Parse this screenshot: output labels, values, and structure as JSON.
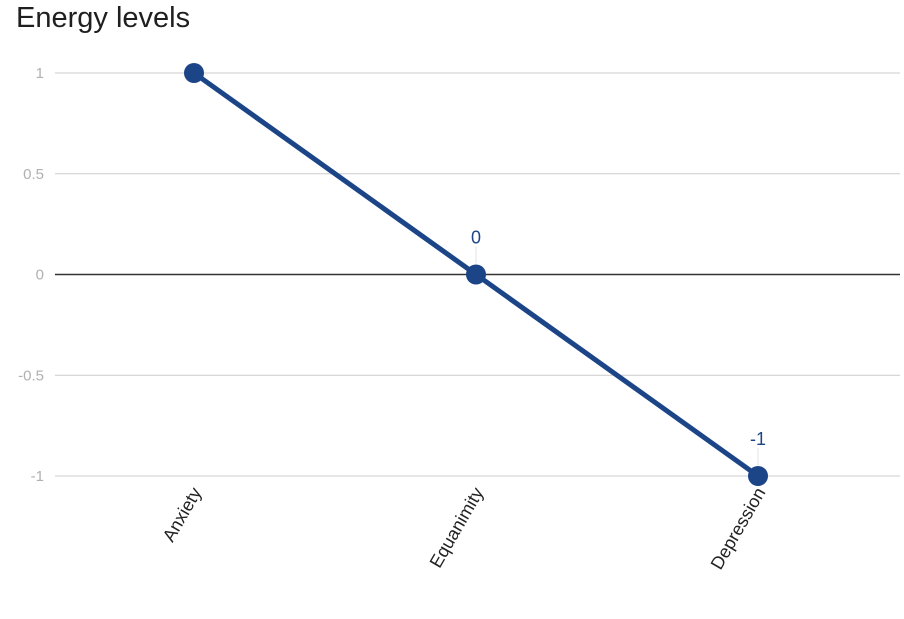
{
  "chart_data": {
    "type": "line",
    "title": "Energy levels",
    "xlabel": "",
    "ylabel": "",
    "categories": [
      "Anxiety",
      "Equanimity",
      "Depression"
    ],
    "values": [
      1,
      0,
      -1
    ],
    "data_labels": [
      "",
      "0",
      "-1"
    ],
    "ylim": [
      -1,
      1
    ],
    "y_ticks": [
      1,
      0.5,
      0,
      -0.5,
      -1
    ],
    "y_tick_labels": [
      "1",
      "0.5",
      "0",
      "-0.5",
      "-1"
    ],
    "grid": true,
    "legend": "none",
    "colors": {
      "series": "#1c4587",
      "grid": "#cccccc",
      "baseline": "#333333",
      "tick_text": "#b0b0b0",
      "label_text": "#222222"
    }
  }
}
